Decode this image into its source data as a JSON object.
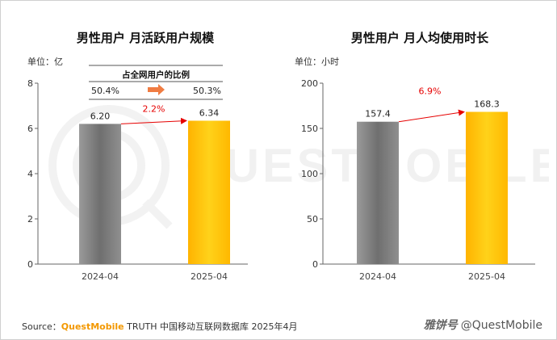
{
  "chart_data": [
    {
      "type": "bar",
      "title": "男性用户 月活跃用户规模",
      "unit_label": "单位：亿",
      "categories": [
        "2024-04",
        "2025-04"
      ],
      "values": [
        6.2,
        6.34
      ],
      "value_labels": [
        "6.20",
        "6.34"
      ],
      "ylim": [
        0,
        8
      ],
      "yticks": [
        0,
        2,
        4,
        6,
        8
      ],
      "growth_label": "2.2%",
      "bar_colors": [
        "#8c8c8c",
        "#ffc000"
      ],
      "ratio_box": {
        "title": "占全网用户的比例",
        "values": [
          "50.4%",
          "50.3%"
        ],
        "arrow_color": "#f07c42"
      }
    },
    {
      "type": "bar",
      "title": "男性用户 月人均使用时长",
      "unit_label": "单位：小时",
      "categories": [
        "2024-04",
        "2025-04"
      ],
      "values": [
        157.4,
        168.3
      ],
      "value_labels": [
        "157.4",
        "168.3"
      ],
      "ylim": [
        0,
        200
      ],
      "yticks": [
        0,
        50,
        100,
        150,
        200
      ],
      "growth_label": "6.9%",
      "bar_colors": [
        "#8c8c8c",
        "#ffc000"
      ]
    }
  ],
  "footer": {
    "source_prefix": "Source：",
    "source_brand": "QuestMobile",
    "source_rest": " TRUTH 中国移动互联网数据库 2025年4月",
    "credit_logo": "雅饼号",
    "credit_handle": "@QuestMobile"
  },
  "watermark_text": "QUESTMOBILE",
  "accent_color": "#e60000"
}
